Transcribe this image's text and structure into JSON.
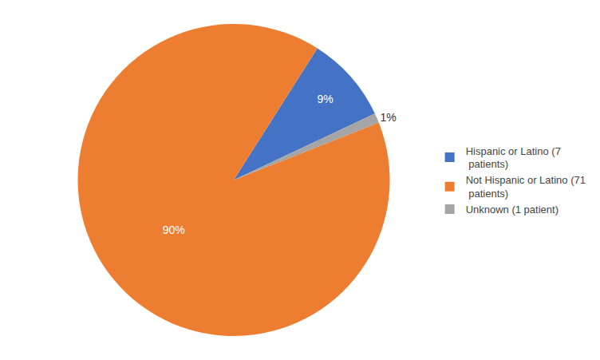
{
  "chart_data": {
    "type": "pie",
    "categories": [
      "Hispanic or Latino (7\n patients)",
      "Not Hispanic or Latino (71\n patients)",
      "Unknown (1 patient)"
    ],
    "values": [
      9,
      90,
      1
    ],
    "value_labels": [
      "9%",
      "90%",
      "1%"
    ],
    "colors": [
      "#4472C4",
      "#ED7D31",
      "#A5A5A5"
    ],
    "data_labels": true,
    "legend": "right"
  }
}
